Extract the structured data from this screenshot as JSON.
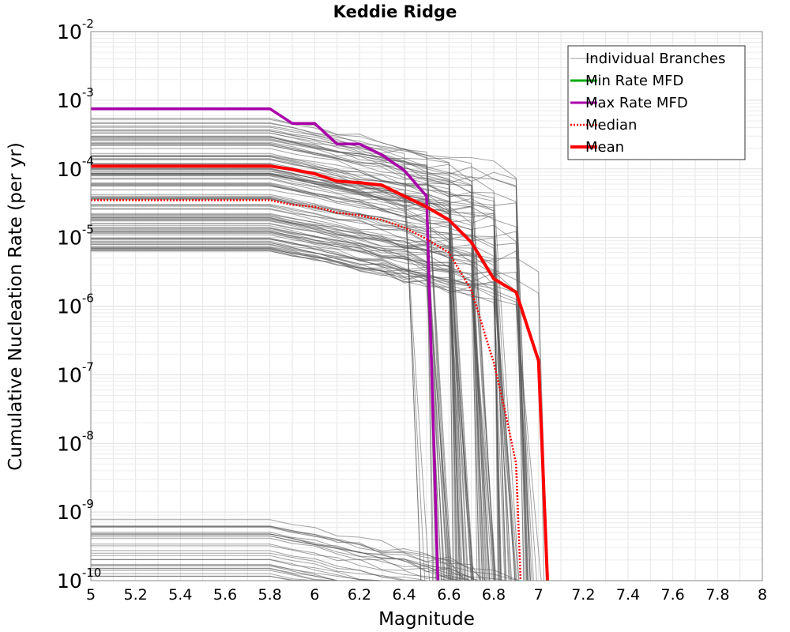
{
  "chart_data": {
    "type": "line",
    "title": "Keddie Ridge",
    "xlabel": "Magnitude",
    "ylabel": "Cumulative Nucleation Rate (per yr)",
    "xlim": [
      5,
      8
    ],
    "ylim": [
      1e-10,
      0.01
    ],
    "yscale": "log",
    "grid": true,
    "legend_position": "top-right",
    "x_ticks": [
      "5",
      "5.2",
      "5.4",
      "5.6",
      "5.8",
      "6",
      "6.2",
      "6.4",
      "6.6",
      "6.8",
      "7",
      "7.2",
      "7.4",
      "7.6",
      "7.8",
      "8"
    ],
    "y_ticks": [
      {
        "base": "10",
        "exp": "-2"
      },
      {
        "base": "10",
        "exp": "-3"
      },
      {
        "base": "10",
        "exp": "-4"
      },
      {
        "base": "10",
        "exp": "-5"
      },
      {
        "base": "10",
        "exp": "-6"
      },
      {
        "base": "10",
        "exp": "-7"
      },
      {
        "base": "10",
        "exp": "-8"
      },
      {
        "base": "10",
        "exp": "-9"
      },
      {
        "base": "10",
        "exp": "-10"
      }
    ],
    "legend": [
      {
        "name": "Individual Branches",
        "color": "#999999",
        "style": "thin"
      },
      {
        "name": "Min Rate MFD",
        "color": "#00aa00",
        "style": "solid"
      },
      {
        "name": "Max Rate MFD",
        "color": "#aa00aa",
        "style": "solid"
      },
      {
        "name": "Median",
        "color": "#ff0000",
        "style": "dotted"
      },
      {
        "name": "Mean",
        "color": "#ff0000",
        "style": "thick"
      }
    ],
    "series": [
      {
        "name": "Max Rate MFD",
        "color": "#aa00aa",
        "x": [
          5.0,
          5.8,
          5.9,
          6.0,
          6.1,
          6.2,
          6.3,
          6.4,
          6.5,
          6.55
        ],
        "y": [
          0.00075,
          0.00075,
          0.00046,
          0.00046,
          0.00023,
          0.00023,
          0.00016,
          9.5e-05,
          4e-05,
          1e-10
        ]
      },
      {
        "name": "Median",
        "color": "#ff0000",
        "x": [
          5.0,
          5.8,
          5.9,
          6.0,
          6.1,
          6.2,
          6.3,
          6.4,
          6.5,
          6.6,
          6.7,
          6.8,
          6.85,
          6.9,
          6.92
        ],
        "y": [
          3.5e-05,
          3.5e-05,
          3e-05,
          2.8e-05,
          2.3e-05,
          2.1e-05,
          1.8e-05,
          1.4e-05,
          9.5e-06,
          6e-06,
          1.7e-06,
          1.5e-07,
          3e-08,
          5e-09,
          1e-10
        ]
      },
      {
        "name": "Mean",
        "color": "#ff0000",
        "x": [
          5.0,
          5.8,
          5.9,
          6.0,
          6.1,
          6.2,
          6.3,
          6.4,
          6.5,
          6.6,
          6.7,
          6.8,
          6.9,
          7.0,
          7.04
        ],
        "y": [
          0.00011,
          0.00011,
          9.8e-05,
          8.5e-05,
          6.6e-05,
          6.3e-05,
          5.8e-05,
          4e-05,
          2.8e-05,
          1.8e-05,
          8.5e-06,
          2.5e-06,
          1.6e-06,
          1.6e-07,
          1e-10
        ]
      }
    ]
  }
}
